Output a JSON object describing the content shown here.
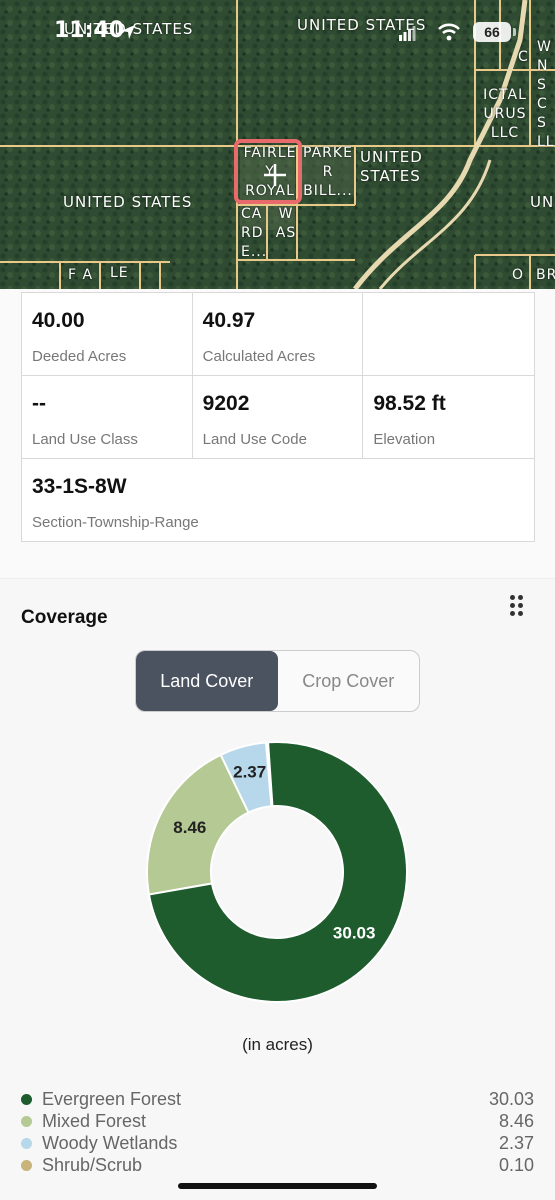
{
  "status_bar": {
    "time": "11:40",
    "battery": "66"
  },
  "map": {
    "labels": {
      "us_top": "UNITED STATES",
      "us_top_behind_time": "UNITED STATES",
      "us_left": "UNITED STATES",
      "us_right": "UNITED STATES",
      "us_far_right": "UNITED STATES",
      "fairley_royal": "FAIRLE Y ROYAL",
      "parker_bill": "PARKE R BILL...",
      "cardi": "CA RD E...",
      "was": "W AS",
      "ictal_urus": "ICTAL URUS LLC",
      "c_label": "C",
      "w_label": "W",
      "fa": "F A",
      "le": "LE",
      "o": "O",
      "br": "BR",
      "right_edge": "W N S C S LL"
    }
  },
  "parcel": {
    "row1": [
      {
        "value": "40.00",
        "label": "Deeded Acres"
      },
      {
        "value": "40.97",
        "label": "Calculated Acres"
      },
      {
        "value": "",
        "label": ""
      }
    ],
    "row2": [
      {
        "value": "--",
        "label": "Land Use Class"
      },
      {
        "value": "9202",
        "label": "Land Use Code"
      },
      {
        "value": "98.52 ft",
        "label": "Elevation"
      }
    ],
    "row3": {
      "value": "33-1S-8W",
      "label": "Section-Township-Range"
    }
  },
  "coverage": {
    "title": "Coverage",
    "tabs": [
      "Land Cover",
      "Crop Cover"
    ],
    "active_tab": "Land Cover",
    "unit_label": "(in acres)",
    "colors": {
      "evergreen": "#1e5c2e",
      "mixed": "#b5c994",
      "wetlands": "#b6d8ea",
      "shrub": "#c8b37a"
    },
    "legend": [
      {
        "name": "Evergreen Forest",
        "value": "30.03",
        "color": "#1e5c2e"
      },
      {
        "name": "Mixed Forest",
        "value": "8.46",
        "color": "#b5c994"
      },
      {
        "name": "Woody Wetlands",
        "value": "2.37",
        "color": "#b6d8ea"
      },
      {
        "name": "Shrub/Scrub",
        "value": "0.10",
        "color": "#c8b37a"
      }
    ]
  },
  "chart_data": {
    "type": "pie",
    "categories": [
      "Evergreen Forest",
      "Mixed Forest",
      "Woody Wetlands",
      "Shrub/Scrub"
    ],
    "values": [
      30.03,
      8.46,
      2.37,
      0.1
    ],
    "data_labels": [
      "30.03",
      "8.46",
      "2.37",
      ""
    ],
    "donut": true,
    "xlabel": "(in acres)",
    "legend": "bottom"
  }
}
